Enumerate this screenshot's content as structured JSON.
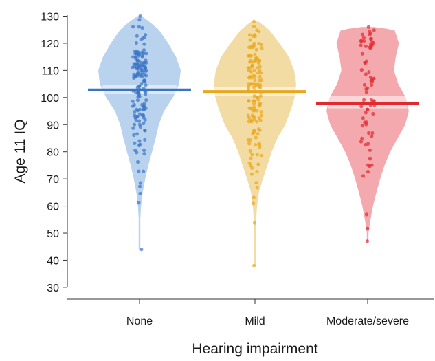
{
  "chart_data": {
    "type": "violin-scatter",
    "xlabel": "Hearing impairment",
    "ylabel": "Age 11 IQ",
    "ylim": [
      27,
      132
    ],
    "yticks": [
      30,
      40,
      50,
      60,
      70,
      80,
      90,
      100,
      110,
      120,
      130
    ],
    "categories": [
      "None",
      "Mild",
      "Moderate/severe"
    ],
    "grid": false,
    "series": [
      {
        "category": "None",
        "color": "#3a75c4",
        "fill": "#b9d3ef",
        "mean": 102.8,
        "ci": [
          101.5,
          104.5
        ],
        "min": 44,
        "max": 130,
        "density": [
          [
            44,
            0.1
          ],
          [
            50,
            0.15
          ],
          [
            55,
            0.3
          ],
          [
            60,
            0.6
          ],
          [
            65,
            1.2
          ],
          [
            70,
            2.2
          ],
          [
            75,
            3.4
          ],
          [
            80,
            4.8
          ],
          [
            85,
            6.2
          ],
          [
            90,
            7.4
          ],
          [
            95,
            9.4
          ],
          [
            100,
            12.8
          ],
          [
            105,
            15.2
          ],
          [
            110,
            15.8
          ],
          [
            115,
            14.0
          ],
          [
            120,
            11.0
          ],
          [
            125,
            7.4
          ],
          [
            128,
            3.8
          ],
          [
            130,
            0.8
          ]
        ]
      },
      {
        "category": "Mild",
        "color": "#e8a71c",
        "fill": "#f3dca3",
        "mean": 102.2,
        "ci": [
          100.6,
          103.8
        ],
        "min": 38,
        "max": 128,
        "density": [
          [
            38,
            0.1
          ],
          [
            45,
            0.2
          ],
          [
            50,
            0.3
          ],
          [
            55,
            0.45
          ],
          [
            60,
            0.8
          ],
          [
            65,
            1.5
          ],
          [
            70,
            3.0
          ],
          [
            75,
            4.8
          ],
          [
            80,
            6.4
          ],
          [
            85,
            8.6
          ],
          [
            90,
            11.6
          ],
          [
            95,
            13.6
          ],
          [
            100,
            15.2
          ],
          [
            105,
            15.8
          ],
          [
            110,
            15.0
          ],
          [
            115,
            13.0
          ],
          [
            120,
            9.4
          ],
          [
            125,
            5.4
          ],
          [
            128,
            1.4
          ]
        ]
      },
      {
        "category": "Moderate/severe",
        "color": "#e02a2f",
        "fill": "#f3a9ae",
        "mean": 97.8,
        "ci": [
          96.0,
          100.5
        ],
        "min": 47,
        "max": 126,
        "density": [
          [
            47,
            0.1
          ],
          [
            50,
            0.25
          ],
          [
            55,
            0.9
          ],
          [
            60,
            1.7
          ],
          [
            65,
            2.8
          ],
          [
            70,
            4.0
          ],
          [
            75,
            5.4
          ],
          [
            80,
            7.2
          ],
          [
            85,
            9.6
          ],
          [
            90,
            12.0
          ],
          [
            95,
            13.2
          ],
          [
            100,
            12.2
          ],
          [
            105,
            9.8
          ],
          [
            110,
            8.4
          ],
          [
            115,
            9.0
          ],
          [
            120,
            10.0
          ],
          [
            125,
            8.6
          ],
          [
            126,
            2.0
          ]
        ]
      }
    ]
  }
}
